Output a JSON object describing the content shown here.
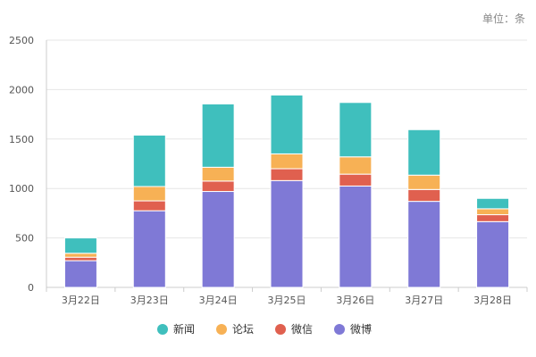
{
  "unit_label": "单位：条",
  "chart_data": {
    "type": "bar",
    "stacked": true,
    "categories": [
      "3月22日",
      "3月23日",
      "3月24日",
      "3月25日",
      "3月26日",
      "3月27日",
      "3月28日"
    ],
    "series": [
      {
        "name": "微博",
        "color": "#7f79d6",
        "values": [
          270,
          775,
          970,
          1080,
          1025,
          870,
          665
        ]
      },
      {
        "name": "微信",
        "color": "#e0604f",
        "values": [
          35,
          100,
          105,
          120,
          120,
          120,
          70
        ]
      },
      {
        "name": "论坛",
        "color": "#f7b155",
        "values": [
          40,
          145,
          140,
          150,
          175,
          145,
          60
        ]
      },
      {
        "name": "新闻",
        "color": "#3fbfbd",
        "values": [
          155,
          520,
          640,
          595,
          550,
          460,
          105
        ]
      }
    ],
    "legend_order": [
      "新闻",
      "论坛",
      "微信",
      "微博"
    ],
    "ylim": [
      0,
      2500
    ],
    "yticks": [
      0,
      500,
      1000,
      1500,
      2000,
      2500
    ],
    "grid": true,
    "legend_position": "bottom"
  }
}
